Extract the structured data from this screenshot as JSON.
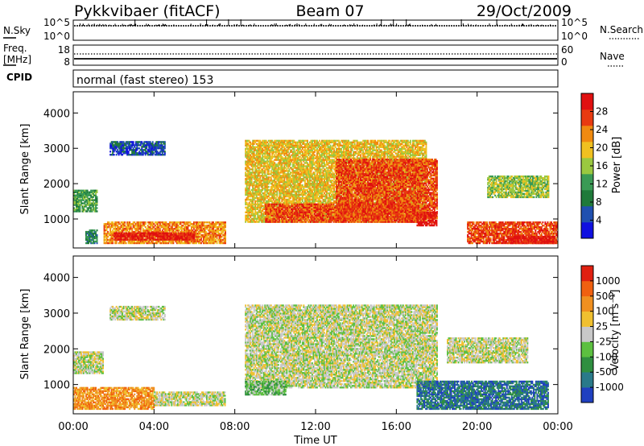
{
  "header": {
    "station": "Pykkvibaer (fitACF)",
    "beam": "Beam 07",
    "date": "29/Oct/2009"
  },
  "status_panels": {
    "nsky": {
      "label": "N.Sky",
      "left_ticks": [
        "10^5",
        "10^0"
      ],
      "right_label": "N.Search",
      "right_ticks": [
        "10^5",
        "10^0"
      ]
    },
    "freq": {
      "label_line1": "Freq.",
      "label_line2": "[MHz]",
      "left_ticks": [
        "18",
        "8"
      ],
      "right_label": "Nave",
      "right_ticks": [
        "60",
        "0"
      ]
    },
    "cpid": {
      "label": "CPID",
      "mode_text": "normal (fast stereo) 153"
    }
  },
  "chart_data": [
    {
      "type": "heatmap",
      "name": "power",
      "ylabel": "Slant Range [km]",
      "yticks": [
        1000,
        2000,
        3000,
        4000
      ],
      "ylim": [
        180,
        4600
      ],
      "xlim_hours": [
        0,
        24
      ],
      "colorbar": {
        "label": "Power [dB]",
        "ticks": [
          "28",
          "24",
          "20",
          "16",
          "12",
          "8",
          "4"
        ],
        "colors": [
          "#1010e0",
          "#2050b0",
          "#1f7a3a",
          "#3a9a55",
          "#9ac840",
          "#f0c020",
          "#f08a10",
          "#e83a10",
          "#e01010"
        ]
      },
      "regions": [
        {
          "t": [
            0.0,
            1.2
          ],
          "r": [
            1200,
            1800
          ],
          "level": 3
        },
        {
          "t": [
            0.6,
            1.2
          ],
          "r": [
            300,
            700
          ],
          "level": 2
        },
        {
          "t": [
            1.5,
            7.5
          ],
          "r": [
            300,
            900
          ],
          "level": 6
        },
        {
          "t": [
            2.0,
            6.0
          ],
          "r": [
            400,
            600
          ],
          "level": 8
        },
        {
          "t": [
            1.8,
            4.5
          ],
          "r": [
            2800,
            3200
          ],
          "level": 1
        },
        {
          "t": [
            8.5,
            17.5
          ],
          "r": [
            900,
            3200
          ],
          "level": 5
        },
        {
          "t": [
            9.5,
            17.0
          ],
          "r": [
            900,
            1400
          ],
          "level": 7
        },
        {
          "t": [
            13.0,
            18.0
          ],
          "r": [
            1000,
            2700
          ],
          "level": 7
        },
        {
          "t": [
            17.0,
            18.0
          ],
          "r": [
            800,
            1200
          ],
          "level": 8
        },
        {
          "t": [
            19.5,
            24.0
          ],
          "r": [
            300,
            900
          ],
          "level": 7
        },
        {
          "t": [
            21.5,
            23.8
          ],
          "r": [
            300,
            500
          ],
          "level": 8
        },
        {
          "t": [
            20.5,
            23.5
          ],
          "r": [
            1600,
            2200
          ],
          "level": 4
        }
      ]
    },
    {
      "type": "heatmap",
      "name": "velocity",
      "ylabel": "Slant Range [km]",
      "yticks": [
        1000,
        2000,
        3000,
        4000
      ],
      "ylim": [
        180,
        4600
      ],
      "xlabel": "Time UT",
      "xticks": [
        "00:00",
        "04:00",
        "08:00",
        "12:00",
        "16:00",
        "20:00",
        "00:00"
      ],
      "colorbar": {
        "label": "Velocity [m s⁻¹]",
        "ticks": [
          "1000",
          "500",
          "100",
          "25",
          "-25",
          "-100",
          "-500",
          "-1000"
        ],
        "colors": [
          "#2040c0",
          "#2a7a8a",
          "#2f8f40",
          "#5cc040",
          "#c8c8c8",
          "#f0c030",
          "#f09020",
          "#f06010",
          "#e02010"
        ]
      },
      "regions": [
        {
          "t": [
            0.0,
            1.5
          ],
          "r": [
            1300,
            1900
          ],
          "level": 4
        },
        {
          "t": [
            0.0,
            4.0
          ],
          "r": [
            300,
            900
          ],
          "level": 6
        },
        {
          "t": [
            4.0,
            7.5
          ],
          "r": [
            400,
            800
          ],
          "level": 4
        },
        {
          "t": [
            1.8,
            4.5
          ],
          "r": [
            2800,
            3200
          ],
          "level": 4
        },
        {
          "t": [
            8.5,
            18.0
          ],
          "r": [
            900,
            3200
          ],
          "level": 4
        },
        {
          "t": [
            8.5,
            10.5
          ],
          "r": [
            700,
            1100
          ],
          "level": 3
        },
        {
          "t": [
            17.0,
            23.5
          ],
          "r": [
            300,
            1100
          ],
          "level": 1
        },
        {
          "t": [
            18.5,
            22.5
          ],
          "r": [
            1600,
            2300
          ],
          "level": 4
        }
      ]
    }
  ]
}
